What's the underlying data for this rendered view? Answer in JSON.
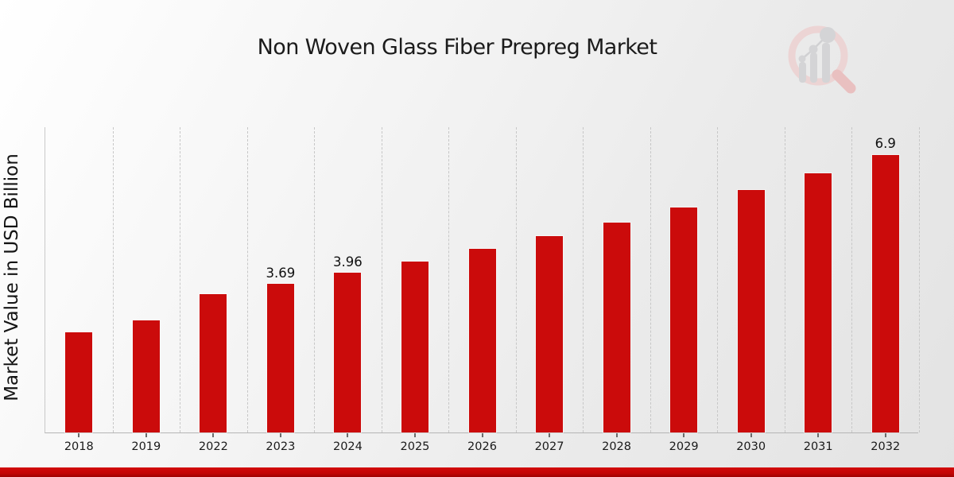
{
  "page": {
    "title": "Non Woven Glass Fiber Prepreg Market",
    "logo_icon": "magnifier-bar-chart-logo"
  },
  "chart_data": {
    "type": "bar",
    "title": "Non Woven Glass Fiber Prepreg Market",
    "xlabel": "",
    "ylabel": "Market Value in USD Billion",
    "categories": [
      "2018",
      "2019",
      "2022",
      "2023",
      "2024",
      "2025",
      "2026",
      "2027",
      "2028",
      "2029",
      "2030",
      "2031",
      "2032"
    ],
    "values": [
      2.49,
      2.79,
      3.44,
      3.69,
      3.96,
      4.25,
      4.57,
      4.88,
      5.22,
      5.59,
      6.03,
      6.44,
      6.9
    ],
    "data_labels": {
      "2023": "3.69",
      "2024": "3.96",
      "2032": "6.9"
    },
    "ylim": [
      0,
      7.6
    ],
    "grid": "vertical-dashed",
    "legend": "none",
    "bar_color": "#cb0b0b"
  },
  "colors": {
    "bar": "#cb0b0b",
    "gridline": "#c7c7c7",
    "axis": "#b5b5b5",
    "text": "#1a1a1a",
    "bottom_strip": "#c40606",
    "logo_ring": "#ecd4d4",
    "logo_handle": "#e9c0c0",
    "logo_gray": "#d4d4d6"
  }
}
